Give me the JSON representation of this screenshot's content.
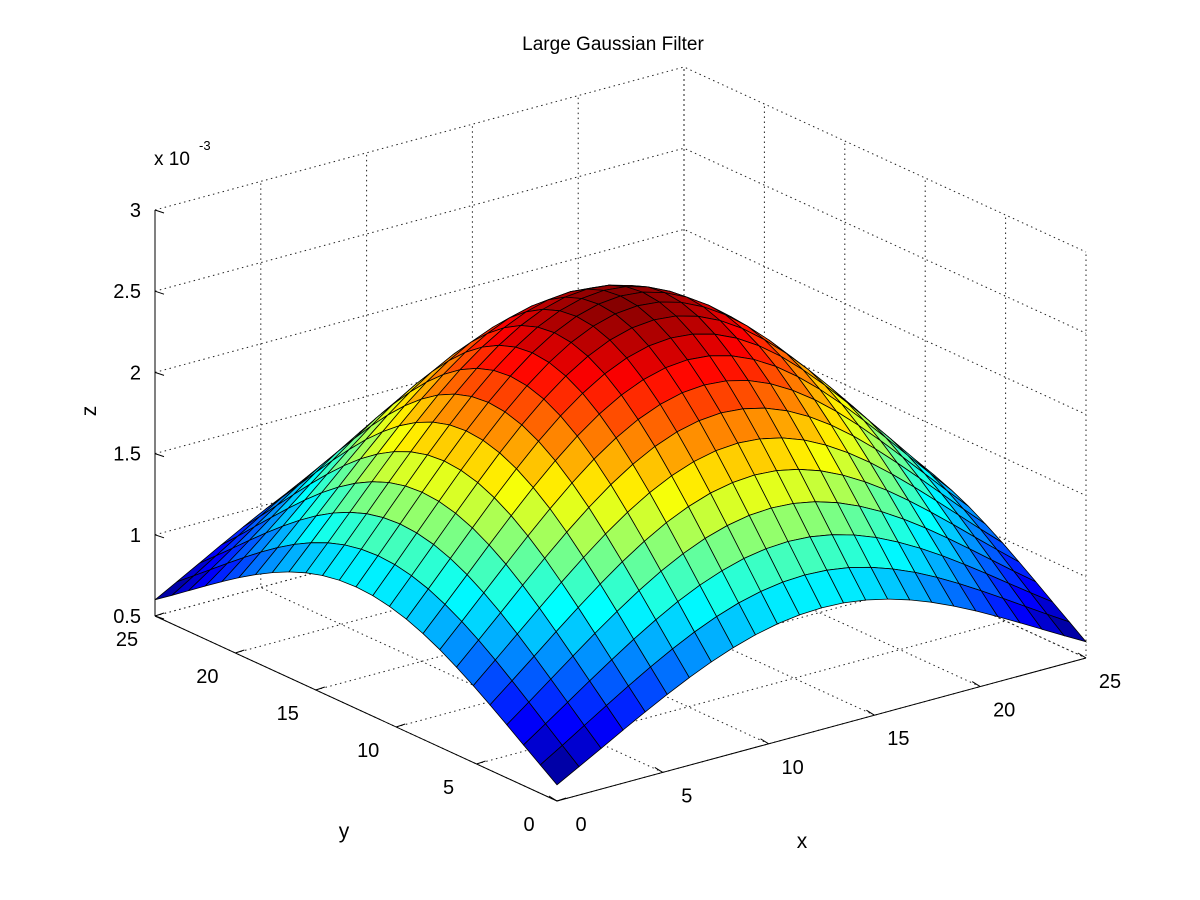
{
  "chart_data": {
    "type": "surface",
    "title": "Large Gaussian Filter",
    "xlabel": "x",
    "ylabel": "y",
    "zlabel": "z",
    "z_exponent_label": "x 10",
    "z_exponent_power": "-3",
    "xlim": [
      0,
      25
    ],
    "ylim": [
      0,
      25
    ],
    "zlim": [
      0.5,
      3
    ],
    "x_ticks": [
      0,
      5,
      10,
      15,
      20,
      25
    ],
    "y_ticks": [
      0,
      5,
      10,
      15,
      20,
      25
    ],
    "z_ticks": [
      0.5,
      1,
      1.5,
      2,
      2.5,
      3
    ],
    "z_tick_labels": [
      "0.5",
      "1",
      "1.5",
      "2",
      "2.5",
      "3"
    ],
    "grid_size": 25,
    "center": [
      12.5,
      12.5
    ],
    "peak_z": 2.6,
    "min_corner_z": 0.6,
    "colormap": "jet",
    "grid": true
  }
}
